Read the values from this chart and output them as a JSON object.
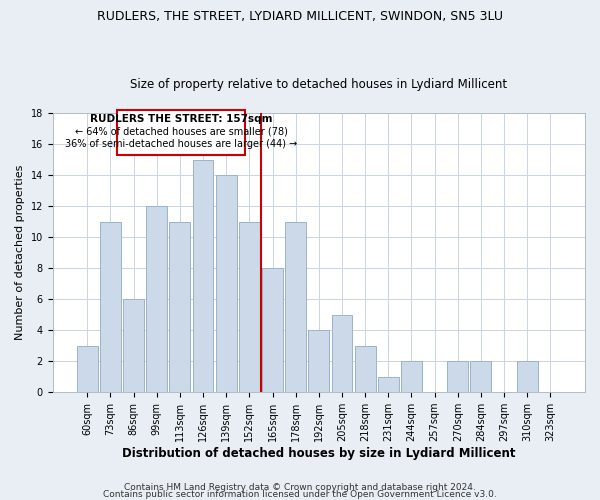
{
  "title": "RUDLERS, THE STREET, LYDIARD MILLICENT, SWINDON, SN5 3LU",
  "subtitle": "Size of property relative to detached houses in Lydiard Millicent",
  "xlabel": "Distribution of detached houses by size in Lydiard Millicent",
  "ylabel": "Number of detached properties",
  "categories": [
    "60sqm",
    "73sqm",
    "86sqm",
    "99sqm",
    "113sqm",
    "126sqm",
    "139sqm",
    "152sqm",
    "165sqm",
    "178sqm",
    "192sqm",
    "205sqm",
    "218sqm",
    "231sqm",
    "244sqm",
    "257sqm",
    "270sqm",
    "284sqm",
    "297sqm",
    "310sqm",
    "323sqm"
  ],
  "values": [
    3,
    11,
    6,
    12,
    11,
    15,
    14,
    11,
    8,
    11,
    4,
    5,
    3,
    1,
    2,
    0,
    2,
    2,
    0,
    2,
    0
  ],
  "bar_color": "#ccd9e8",
  "bar_edgecolor": "#9ab4cc",
  "ref_line_x": 7.5,
  "ref_line_color": "#cc0000",
  "annotation_box_title": "RUDLERS THE STREET: 157sqm",
  "annotation_line1": "← 64% of detached houses are smaller (78)",
  "annotation_line2": "36% of semi-detached houses are larger (44) →",
  "annotation_box_edgecolor": "#cc0000",
  "ylim": [
    0,
    18
  ],
  "yticks": [
    0,
    2,
    4,
    6,
    8,
    10,
    12,
    14,
    16,
    18
  ],
  "footer1": "Contains HM Land Registry data © Crown copyright and database right 2024.",
  "footer2": "Contains public sector information licensed under the Open Government Licence v3.0.",
  "bg_color": "#e8eef4",
  "plot_bg_color": "#ffffff",
  "title_fontsize": 9,
  "subtitle_fontsize": 8.5,
  "xlabel_fontsize": 8.5,
  "ylabel_fontsize": 8,
  "tick_fontsize": 7,
  "footer_fontsize": 6.5,
  "grid_color": "#c8d4e0"
}
